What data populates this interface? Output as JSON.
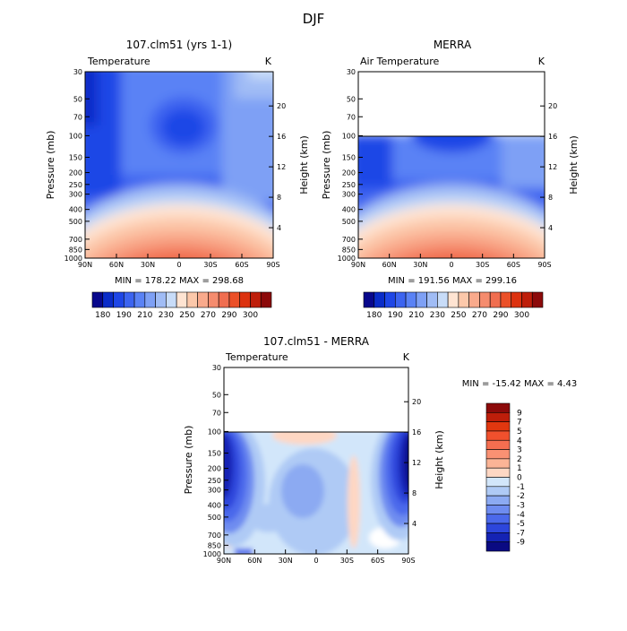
{
  "page_title": "DJF",
  "panels": [
    {
      "title": "107.clm51 (yrs 1-1)",
      "variable": "Temperature",
      "units": "K",
      "ylabel": "Pressure (mb)",
      "y2label": "Height (km)",
      "stats": "MIN = 178.22   MAX = 298.68"
    },
    {
      "title": "MERRA",
      "variable": "Air Temperature",
      "units": "K",
      "ylabel": "Pressure (mb)",
      "y2label": "Height (km)",
      "stats": "MIN = 191.56   MAX = 299.16"
    },
    {
      "title": "107.clm51 - MERRA",
      "variable": "Temperature",
      "units": "K",
      "ylabel": "Pressure (mb)",
      "y2label": "Height (km)",
      "stats": "MIN = -15.42   MAX =    4.43"
    }
  ],
  "chart_data": {
    "type": "heatmap",
    "x_ticks": [
      "90N",
      "60N",
      "30N",
      "0",
      "30S",
      "60S",
      "90S"
    ],
    "pressure_ticks": [
      "30",
      "50",
      "70",
      "100",
      "150",
      "200",
      "250",
      "300",
      "400",
      "500",
      "700",
      "850",
      "1000"
    ],
    "height_ticks": [
      "20",
      "16",
      "12",
      "8",
      "4"
    ],
    "abs_colorbar": {
      "labels": [
        "180",
        "190",
        "210",
        "230",
        "250",
        "270",
        "290",
        "300"
      ],
      "colors": [
        "#08088c",
        "#0a2cc8",
        "#1e46e6",
        "#3c64f0",
        "#5a82f5",
        "#7ea0f5",
        "#a0bcf5",
        "#c8dcf8",
        "#ffe4d2",
        "#fcc8aa",
        "#f9aa8c",
        "#f58c6e",
        "#f06e50",
        "#eb5028",
        "#dc320f",
        "#be1e0a",
        "#8c0a0a"
      ]
    },
    "diff_colorbar": {
      "labels": [
        "9",
        "7",
        "5",
        "4",
        "3",
        "2",
        "1",
        "0",
        "-1",
        "-2",
        "-3",
        "-4",
        "-5",
        "-7",
        "-9"
      ],
      "colors": [
        "#8c0a0a",
        "#be1e0a",
        "#e1370f",
        "#f0502d",
        "#f56e50",
        "#f99173",
        "#fbb496",
        "#fed7c3",
        "#d2e6fa",
        "#afcaf5",
        "#8caaf2",
        "#6e8cf0",
        "#4b69eb",
        "#2d46dc",
        "#1423b4",
        "#0a0a82"
      ]
    }
  }
}
